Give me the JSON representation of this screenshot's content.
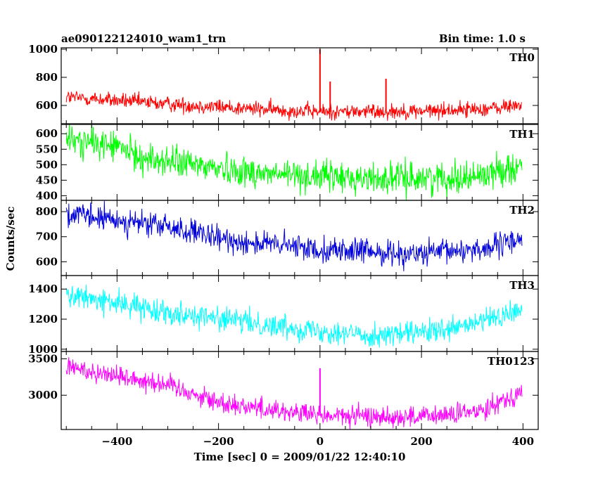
{
  "header": {
    "title": "ae090122124010_wam1_trn",
    "bin_time": "Bin time: 1.0 s"
  },
  "chart_data": {
    "type": "line",
    "title": "ae090122124010_wam1_trn",
    "subtitle": "Bin time: 1.0 s",
    "xlabel": "Time [sec] 0 = 2009/01/22 12:40:10",
    "ylabel": "Counts/sec",
    "xlim": [
      -510,
      430
    ],
    "xticks": [
      -400,
      -200,
      0,
      200,
      400
    ],
    "grid": false,
    "panels": [
      {
        "name": "TH0",
        "color": "#ff0000",
        "ylim": [
          470,
          1010
        ],
        "yticks": [
          600,
          800,
          1000
        ],
        "baseline": [
          [
            -500,
            660
          ],
          [
            -300,
            610
          ],
          [
            -100,
            570
          ],
          [
            0,
            555
          ],
          [
            200,
            560
          ],
          [
            350,
            580
          ],
          [
            400,
            610
          ]
        ],
        "noise_amp": 50,
        "spikes": [
          {
            "x": 0,
            "y": 1000
          },
          {
            "x": 20,
            "y": 770
          },
          {
            "x": 130,
            "y": 790
          }
        ]
      },
      {
        "name": "TH1",
        "color": "#00ff00",
        "ylim": [
          385,
          630
        ],
        "yticks": [
          400,
          450,
          500,
          550,
          600
        ],
        "baseline": [
          [
            -500,
            580
          ],
          [
            -400,
            560
          ],
          [
            -350,
            520
          ],
          [
            -100,
            470
          ],
          [
            100,
            455
          ],
          [
            300,
            460
          ],
          [
            400,
            500
          ]
        ],
        "noise_amp": 45,
        "spikes": []
      },
      {
        "name": "TH2",
        "color": "#0000dd",
        "ylim": [
          545,
          845
        ],
        "yticks": [
          600,
          700,
          800
        ],
        "baseline": [
          [
            -500,
            790
          ],
          [
            -300,
            740
          ],
          [
            -200,
            690
          ],
          [
            0,
            650
          ],
          [
            200,
            630
          ],
          [
            350,
            660
          ],
          [
            400,
            700
          ]
        ],
        "noise_amp": 45,
        "spikes": []
      },
      {
        "name": "TH3",
        "color": "#00ffff",
        "ylim": [
          985,
          1490
        ],
        "yticks": [
          1000,
          1200,
          1400
        ],
        "baseline": [
          [
            -500,
            1360
          ],
          [
            -300,
            1250
          ],
          [
            -100,
            1160
          ],
          [
            100,
            1090
          ],
          [
            250,
            1120
          ],
          [
            400,
            1260
          ]
        ],
        "noise_amp": 70,
        "spikes": []
      },
      {
        "name": "TH0123",
        "color": "#ff00ff",
        "ylim": [
          2530,
          3600
        ],
        "yticks": [
          3000,
          3500
        ],
        "baseline": [
          [
            -500,
            3390
          ],
          [
            -300,
            3150
          ],
          [
            -200,
            2900
          ],
          [
            0,
            2720
          ],
          [
            200,
            2700
          ],
          [
            300,
            2760
          ],
          [
            400,
            3050
          ]
        ],
        "noise_amp": 130,
        "spikes": [
          {
            "x": 0,
            "y": 3370
          }
        ]
      }
    ]
  }
}
